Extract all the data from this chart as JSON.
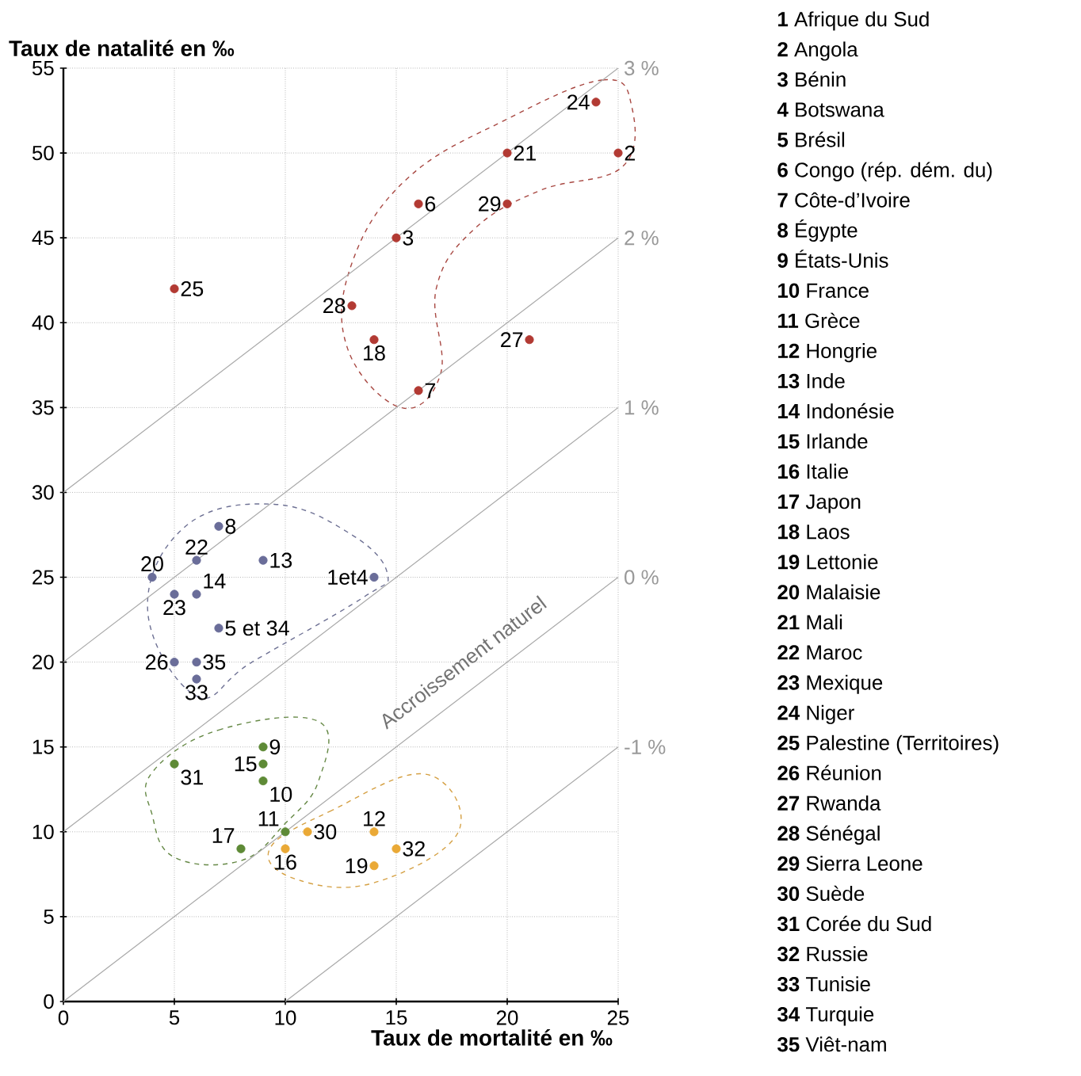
{
  "chart_data": {
    "type": "scatter",
    "xlabel": "Taux de mortalité en ‰",
    "ylabel": "Taux de natalité en ‰",
    "xlim": [
      0,
      25
    ],
    "ylim": [
      0,
      55
    ],
    "xticks": [
      0,
      5,
      10,
      15,
      20,
      25
    ],
    "yticks": [
      0,
      5,
      10,
      15,
      20,
      25,
      30,
      35,
      40,
      45,
      50,
      55
    ],
    "grid": true,
    "series": [
      {
        "color": "#b23a33",
        "x": [
          24,
          20,
          25,
          16,
          20,
          15,
          5,
          13,
          14,
          21,
          16
        ],
        "values": [
          53,
          50,
          50,
          47,
          47,
          45,
          42,
          41,
          39,
          39,
          36
        ]
      },
      {
        "color": "#6a6d99",
        "x": [
          7,
          6,
          4,
          9,
          14,
          5,
          6,
          7,
          5,
          6,
          6
        ],
        "values": [
          28,
          26,
          25,
          26,
          25,
          24,
          24,
          22,
          20,
          20,
          19
        ]
      },
      {
        "color": "#5e8a36",
        "x": [
          9,
          9,
          9,
          5,
          10,
          8
        ],
        "values": [
          15,
          14,
          13,
          14,
          10,
          9
        ]
      },
      {
        "color": "#eaa936",
        "x": [
          11,
          14,
          10,
          15,
          14
        ],
        "values": [
          10,
          10,
          9,
          9,
          8
        ]
      },
      {
        "type": "line",
        "name": "3 %",
        "color": "#a8a8a8",
        "x": [
          0,
          25
        ],
        "values": [
          30,
          55
        ]
      },
      {
        "type": "line",
        "name": "2 %",
        "color": "#a8a8a8",
        "x": [
          0,
          25
        ],
        "values": [
          20,
          45
        ]
      },
      {
        "type": "line",
        "name": "1 %",
        "color": "#a8a8a8",
        "x": [
          0,
          25
        ],
        "values": [
          10,
          35
        ]
      },
      {
        "type": "line",
        "name": "0 %",
        "color": "#a8a8a8",
        "x": [
          0,
          25
        ],
        "values": [
          0,
          25
        ]
      },
      {
        "type": "line",
        "name": "-1 %",
        "color": "#a8a8a8",
        "x": [
          10,
          25
        ],
        "values": [
          0,
          15
        ]
      }
    ],
    "annotations": [
      "Accroissement naturel",
      {
        "text": "24",
        "x": 24,
        "y": 53
      },
      {
        "text": "21",
        "x": 20,
        "y": 50
      },
      {
        "text": "2",
        "x": 25,
        "y": 50
      },
      {
        "text": "6",
        "x": 16,
        "y": 47
      },
      {
        "text": "29",
        "x": 20,
        "y": 47
      },
      {
        "text": "3",
        "x": 15,
        "y": 45
      },
      {
        "text": "25",
        "x": 5,
        "y": 42
      },
      {
        "text": "28",
        "x": 13,
        "y": 41
      },
      {
        "text": "18",
        "x": 14,
        "y": 39
      },
      {
        "text": "27",
        "x": 21,
        "y": 39
      },
      {
        "text": "7",
        "x": 16,
        "y": 36
      },
      {
        "text": "8",
        "x": 7,
        "y": 28
      },
      {
        "text": "22",
        "x": 6,
        "y": 26
      },
      {
        "text": "20",
        "x": 4,
        "y": 25
      },
      {
        "text": "13",
        "x": 9,
        "y": 26
      },
      {
        "text": "1et4",
        "x": 14,
        "y": 25
      },
      {
        "text": "23",
        "x": 5,
        "y": 24
      },
      {
        "text": "14",
        "x": 6,
        "y": 24
      },
      {
        "text": "5 et 34",
        "x": 7,
        "y": 22
      },
      {
        "text": "26",
        "x": 5,
        "y": 20
      },
      {
        "text": "35",
        "x": 6,
        "y": 20
      },
      {
        "text": "33",
        "x": 6,
        "y": 19
      },
      {
        "text": "9",
        "x": 9,
        "y": 15
      },
      {
        "text": "15",
        "x": 9,
        "y": 14
      },
      {
        "text": "10",
        "x": 9,
        "y": 13
      },
      {
        "text": "31",
        "x": 5,
        "y": 14
      },
      {
        "text": "11",
        "x": 10,
        "y": 10
      },
      {
        "text": "17",
        "x": 8,
        "y": 9
      },
      {
        "text": "30",
        "x": 11,
        "y": 10
      },
      {
        "text": "12",
        "x": 14,
        "y": 10
      },
      {
        "text": "16",
        "x": 10,
        "y": 9
      },
      {
        "text": "32",
        "x": 15,
        "y": 9
      },
      {
        "text": "19",
        "x": 14,
        "y": 8
      },
      "**1** Afrique du Sud",
      "**2** Angola",
      "**3** Bénin",
      "**4** Botswana",
      "**5** Brésil",
      "**6** Congo (rép. dém. du)",
      "**7** Côte-d’Ivoire",
      "**8** Égypte",
      "**9** États-Unis",
      "**10** France",
      "**11** Grèce",
      "**12** Hongrie",
      "**13** Inde",
      "**14** Indonésie",
      "**15** Irlande",
      "**16** Italie",
      "**17** Japon",
      "**18** Laos",
      "**19** Lettonie",
      "**20** Malaisie",
      "**21** Mali",
      "**22** Maroc",
      "**23** Mexique",
      "**24** Niger",
      "**25** Palestine (Territoires)",
      "**26** Réunion",
      "**27** Rwanda",
      "**28** Sénégal",
      "**29** Sierra Leone",
      "**30** Suède",
      "**31** Corée du Sud",
      "**32** Russie",
      "**33** Tunisie",
      "**34** Turquie",
      "**35** Viêt-nam"
    ]
  }
}
